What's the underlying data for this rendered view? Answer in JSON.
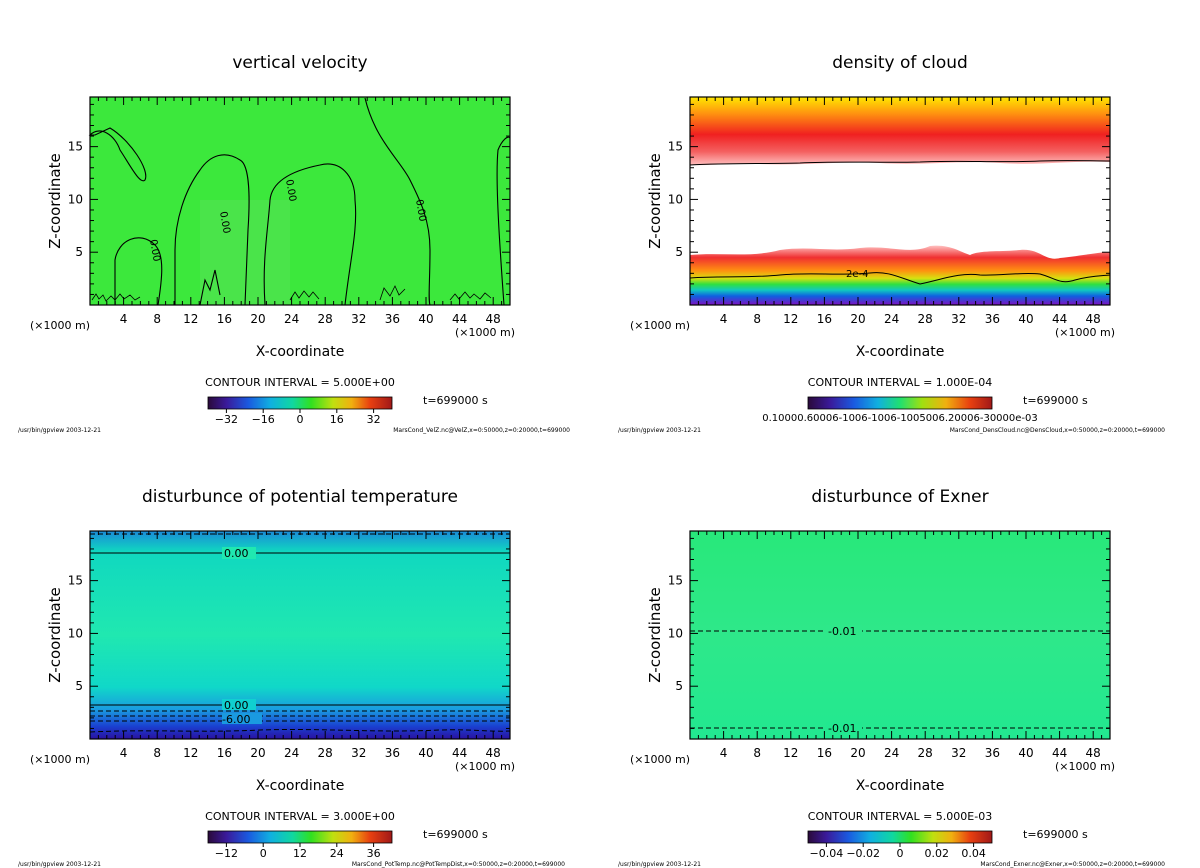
{
  "chart_data": [
    {
      "id": "p1",
      "type": "heatmap",
      "title": "vertical velocity",
      "xlabel": "X-coordinate",
      "ylabel": "Z-coordinate",
      "x_unit": "(×1000 m)",
      "xlim": [
        0,
        50
      ],
      "ylim": [
        0,
        19.7
      ],
      "xticks": [
        "4",
        "8",
        "12",
        "16",
        "20",
        "24",
        "28",
        "32",
        "36",
        "40",
        "44",
        "48"
      ],
      "yticks": [
        "5",
        "10",
        "15"
      ],
      "contour_interval": "CONTOUR INTERVAL = 5.000E+00",
      "time_label": "t=699000 s",
      "colorbar_ticks": [
        "-32",
        "-16",
        "0",
        "16",
        "32"
      ],
      "colorbar_range": [
        -40,
        40
      ],
      "contour_labels": [
        "0.00",
        "0.00",
        "0.00",
        "0.00"
      ],
      "footer_left": "/usr/bin/gpview   2003-12-21",
      "footer_right": "MarsCond_VelZ.nc@VelZ,x=0:50000,z=0:20000,t=699000"
    },
    {
      "id": "p2",
      "type": "heatmap",
      "title": "density of cloud",
      "xlabel": "X-coordinate",
      "ylabel": "Z-coordinate",
      "x_unit": "(×1000 m)",
      "xlim": [
        0,
        50
      ],
      "ylim": [
        0,
        19.7
      ],
      "xticks": [
        "4",
        "8",
        "12",
        "16",
        "20",
        "24",
        "28",
        "32",
        "36",
        "40",
        "44",
        "48"
      ],
      "yticks": [
        "5",
        "10",
        "15"
      ],
      "contour_interval": "CONTOUR INTERVAL = 1.000E-04",
      "time_label": "t=699000 s",
      "colorbar_ticks_text": "0.10000.60006-1006-1006-1005006.20006-30000e-03",
      "contour_labels": [
        "2e-4"
      ],
      "footer_left": "/usr/bin/gpview   2003-12-21",
      "footer_right": "MarsCond_DensCloud.nc@DensCloud,x=0:50000,z=0:20000,t=699000"
    },
    {
      "id": "p3",
      "type": "heatmap",
      "title": "disturbunce of potential temperature",
      "xlabel": "X-coordinate",
      "ylabel": "Z-coordinate",
      "x_unit": "(×1000 m)",
      "xlim": [
        0,
        50
      ],
      "ylim": [
        0,
        19.7
      ],
      "xticks": [
        "4",
        "8",
        "12",
        "16",
        "20",
        "24",
        "28",
        "32",
        "36",
        "40",
        "44",
        "48"
      ],
      "yticks": [
        "5",
        "10",
        "15"
      ],
      "contour_interval": "CONTOUR INTERVAL = 3.000E+00",
      "time_label": "t=699000 s",
      "colorbar_ticks": [
        "-12",
        "0",
        "12",
        "24",
        "36"
      ],
      "colorbar_range": [
        -18,
        42
      ],
      "contour_labels": [
        "0.00",
        "0.00",
        "-6.00"
      ],
      "footer_left": "/usr/bin/gpview   2003-12-21",
      "footer_right": "MarsCond_PotTemp.nc@PotTempDist,x=0:50000,z=0:20000,t=699000"
    },
    {
      "id": "p4",
      "type": "heatmap",
      "title": "disturbunce of Exner",
      "xlabel": "X-coordinate",
      "ylabel": "Z-coordinate",
      "x_unit": "(×1000 m)",
      "xlim": [
        0,
        50
      ],
      "ylim": [
        0,
        19.7
      ],
      "xticks": [
        "4",
        "8",
        "12",
        "16",
        "20",
        "24",
        "28",
        "32",
        "36",
        "40",
        "44",
        "48"
      ],
      "yticks": [
        "5",
        "10",
        "15"
      ],
      "contour_interval": "CONTOUR INTERVAL = 5.000E-03",
      "time_label": "t=699000 s",
      "colorbar_ticks": [
        "-0.04",
        "-0.02",
        "0",
        "0.02",
        "0.04"
      ],
      "colorbar_range": [
        -0.05,
        0.05
      ],
      "contour_labels": [
        "-0.01",
        "-0.01"
      ],
      "footer_left": "/usr/bin/gpview   2003-12-21",
      "footer_right": "MarsCond_Exner.nc@Exner,x=0:50000,z=0:20000,t=699000"
    }
  ]
}
